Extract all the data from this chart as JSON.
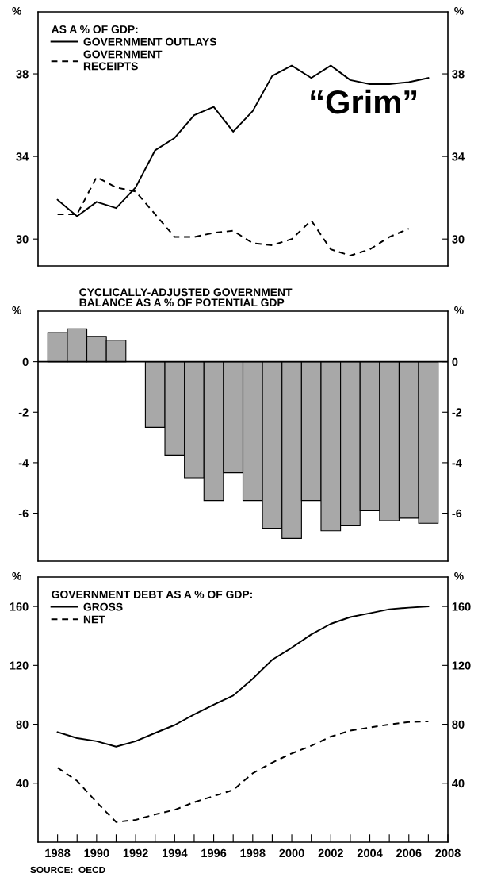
{
  "chart_data": [
    {
      "type": "line",
      "legend_title": "AS A % OF GDP:",
      "ylabel": "%",
      "y2label": "%",
      "legend": "top left",
      "tick_labels": "y",
      "annotations": [
        "“Grim”"
      ],
      "x": [
        1988,
        1989,
        1990,
        1991,
        1992,
        1993,
        1994,
        1995,
        1996,
        1997,
        1998,
        1999,
        2000,
        2001,
        2002,
        2003,
        2004,
        2005,
        2006,
        2007
      ],
      "xlim": [
        1987,
        2008
      ],
      "ylim": [
        28.7,
        41
      ],
      "yticks": [
        30,
        34,
        38
      ],
      "y2lim": [
        28.7,
        41
      ],
      "y2ticks": [
        30,
        34,
        38
      ],
      "series": [
        {
          "name": "GOVERNMENT OUTLAYS",
          "color": "#000000",
          "line_style": "solid",
          "values": [
            31.9,
            31.1,
            31.8,
            31.5,
            32.5,
            34.3,
            34.9,
            36.0,
            36.4,
            35.2,
            36.2,
            37.9,
            38.4,
            37.8,
            38.4,
            37.7,
            37.5,
            37.5,
            37.6,
            37.8
          ]
        },
        {
          "name": "GOVERNMENT\nRECEIPTS",
          "color": "#000000",
          "line_style": "dashed",
          "values": [
            31.2,
            31.2,
            33.0,
            32.5,
            32.3,
            31.2,
            30.1,
            30.1,
            30.3,
            30.4,
            29.8,
            29.7,
            30.0,
            30.9,
            29.5,
            29.2,
            29.5,
            30.1,
            30.5,
            null
          ]
        }
      ]
    },
    {
      "type": "bar",
      "title": "CYCLICALLY-ADJUSTED GOVERNMENT\nBALANCE AS A % OF POTENTIAL GDP",
      "ylabel": "%",
      "y2label": "%",
      "tick_labels": "y",
      "x": [
        1988,
        1989,
        1990,
        1991,
        1992,
        1993,
        1994,
        1995,
        1996,
        1997,
        1998,
        1999,
        2000,
        2001,
        2002,
        2003,
        2004,
        2005,
        2006,
        2007
      ],
      "xlim": [
        1987,
        2008
      ],
      "ylim": [
        -7.9,
        2.0
      ],
      "yticks": [
        -6,
        -4,
        -2,
        0
      ],
      "y2lim": [
        -7.9,
        2.0
      ],
      "y2ticks": [
        -6,
        -4,
        -2,
        0
      ],
      "color": "#a8a8a8",
      "values": [
        1.15,
        1.3,
        1.0,
        0.85,
        null,
        -2.6,
        -3.7,
        -4.6,
        -5.5,
        -4.4,
        -5.5,
        -6.6,
        -7.0,
        -5.5,
        -6.7,
        -6.5,
        -5.9,
        -6.3,
        -6.2,
        -6.4
      ]
    },
    {
      "type": "line",
      "legend_title": "GOVERNMENT DEBT AS A % OF GDP:",
      "ylabel": "%",
      "y2label": "%",
      "legend": "top left",
      "annotations": [
        "SOURCE:  OECD"
      ],
      "x": [
        1988,
        1989,
        1990,
        1991,
        1992,
        1993,
        1994,
        1995,
        1996,
        1997,
        1998,
        1999,
        2000,
        2001,
        2002,
        2003,
        2004,
        2005,
        2006,
        2007
      ],
      "xlim": [
        1987,
        2008
      ],
      "ylim": [
        0,
        180
      ],
      "yticks": [
        40,
        80,
        120,
        160
      ],
      "y2lim": [
        0,
        180
      ],
      "y2ticks": [
        40,
        80,
        120,
        160
      ],
      "xticks": [
        1988,
        {
          "value": 1989,
          "label": null
        },
        1990,
        {
          "value": 1991,
          "label": null
        },
        1992,
        {
          "value": 1993,
          "label": null
        },
        1994,
        {
          "value": 1995,
          "label": null
        },
        1996,
        {
          "value": 1997,
          "label": null
        },
        1998,
        {
          "value": 1999,
          "label": null
        },
        2000,
        {
          "value": 2001,
          "label": null
        },
        2002,
        {
          "value": 2003,
          "label": null
        },
        2004,
        {
          "value": 2005,
          "label": null
        },
        2006,
        {
          "value": 2007,
          "label": null
        },
        2008
      ],
      "series": [
        {
          "name": "GROSS",
          "color": "#000000",
          "line_style": "solid",
          "values": [
            74.7,
            70.6,
            68.5,
            64.8,
            68.5,
            74.1,
            79.5,
            86.7,
            93.3,
            99.5,
            110.9,
            123.8,
            132.0,
            141.0,
            148.2,
            152.8,
            155.4,
            158.1,
            159.2,
            160.0
          ]
        },
        {
          "name": "NET",
          "color": "#000000",
          "line_style": "dashed",
          "values": [
            50.5,
            41.6,
            27.1,
            13.6,
            15.1,
            18.8,
            21.9,
            27.1,
            31.2,
            35.4,
            46.7,
            54.0,
            60.2,
            65.4,
            71.6,
            75.7,
            77.8,
            79.9,
            81.5,
            81.9
          ]
        }
      ]
    }
  ]
}
